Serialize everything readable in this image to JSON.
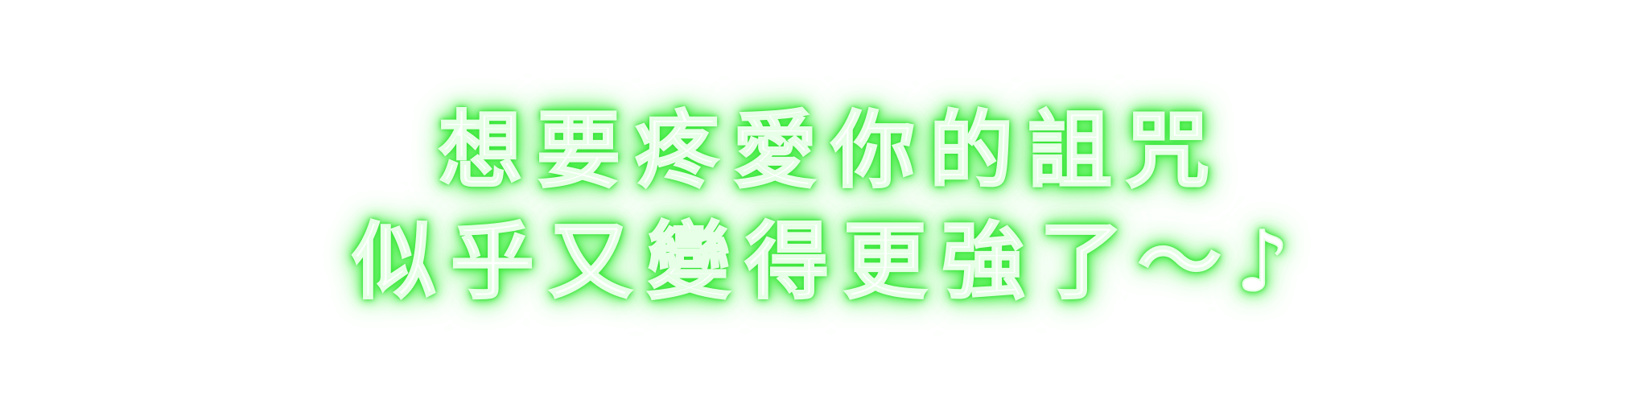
{
  "caption": {
    "line1": "想要疼愛你的詛咒",
    "line2": "似乎又變得更強了～♪"
  },
  "colors": {
    "background": "#ffffff",
    "text_fill": "#ffffff",
    "glow": "#3ee83e"
  }
}
